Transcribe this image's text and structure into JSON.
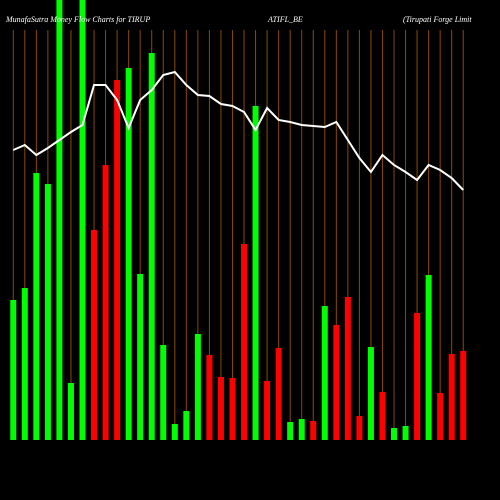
{
  "chart_data": {
    "type": "bar",
    "title": "MunafaSutra  Money Flow  Charts for TIRUP",
    "subtitle": "ATIFL_BE",
    "company": "(Tirupati  Forge  Limit",
    "categories": [
      null,
      null,
      null,
      null,
      null,
      null,
      null,
      null,
      null,
      null,
      null,
      null,
      null,
      null,
      null,
      null,
      null,
      null,
      null,
      null,
      null,
      null,
      null,
      null,
      null,
      null,
      null,
      null,
      null,
      null,
      null,
      null,
      null,
      null,
      null,
      null,
      null,
      null,
      null,
      null
    ],
    "series": [
      {
        "name": null,
        "values": [
          140,
          152,
          267,
          256,
          440,
          57,
          440,
          210,
          275,
          360,
          372,
          166,
          387,
          95,
          16,
          29,
          106,
          85,
          63,
          62,
          196,
          334,
          59,
          92,
          18,
          21,
          19,
          134,
          115,
          143,
          24,
          93,
          48,
          12,
          14,
          127,
          165,
          47,
          86,
          89
        ],
        "colors": [
          "#00ff00",
          "#00ff00",
          "#00ff00",
          "#00ff00",
          "#00ff00",
          "#00ff00",
          "#00ff00",
          "#ff0000",
          "#ff0000",
          "#ff0000",
          "#00ff00",
          "#00ff00",
          "#00ff00",
          "#00ff00",
          "#00ff00",
          "#00ff00",
          "#00ff00",
          "#ff0000",
          "#ff0000",
          "#ff0000",
          "#ff0000",
          "#00ff00",
          "#ff0000",
          "#ff0000",
          "#00ff00",
          "#00ff00",
          "#ff0000",
          "#00ff00",
          "#ff0000",
          "#ff0000",
          "#ff0000",
          "#00ff00",
          "#ff0000",
          "#00ff00",
          "#00ff00",
          "#ff0000",
          "#00ff00",
          "#ff0000",
          "#ff0000",
          "#ff0000"
        ]
      },
      {
        "name": null,
        "type": "line",
        "color": "#ffffff",
        "values": [
          290,
          295,
          285,
          292,
          300,
          308,
          315,
          355,
          355,
          340,
          312,
          340,
          350,
          365,
          368,
          355,
          345,
          344,
          336,
          334,
          328,
          310,
          332,
          320,
          318,
          315,
          314,
          313,
          318,
          300,
          282,
          268,
          285,
          275,
          268,
          260,
          275,
          270,
          262,
          250
        ]
      }
    ],
    "gridline_color": "#8b4a00",
    "ylim": [
      0,
      440
    ]
  }
}
